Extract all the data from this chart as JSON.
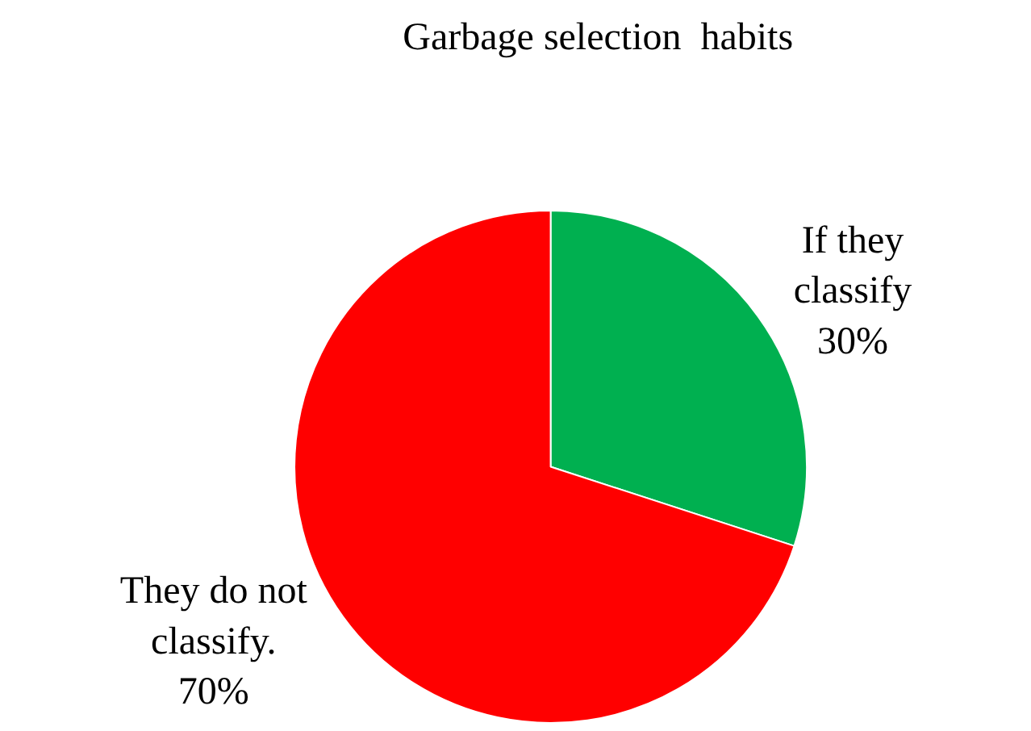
{
  "chart_data": {
    "type": "pie",
    "title": "Garbage selection  habits",
    "categories": [
      "If they\nclassify",
      "They do not\nclassify."
    ],
    "values": [
      30,
      70
    ],
    "value_labels": [
      "30%",
      "70%"
    ],
    "colors": [
      "#00b050",
      "#ff0000"
    ],
    "legend": false
  }
}
